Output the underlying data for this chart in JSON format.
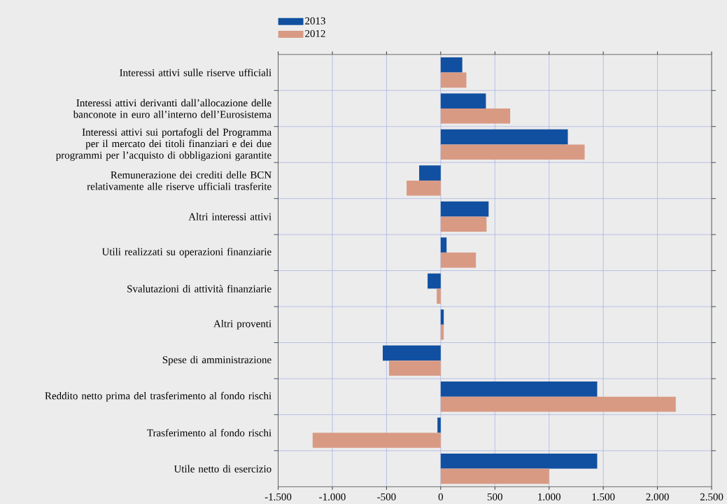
{
  "chart_data": {
    "type": "bar",
    "orientation": "horizontal",
    "categories": [
      "Interessi attivi sulle riserve ufficiali",
      "Interessi attivi derivanti dall’allocazione delle banconote in euro all’interno dell’Eurosistema",
      "Interessi attivi sui portafogli del Programma per il mercato dei titoli finanziari e dei due programmi per l’acquisto di obbligazioni garantite",
      "Remunerazione dei crediti delle BCN relativamente alle riserve ufficiali trasferite",
      "Altri interessi attivi",
      "Utili realizzati su operazioni finanziarie",
      "Svalutazioni di attività finanziarie",
      "Altri proventi",
      "Spese di amministrazione",
      "Reddito netto prima del trasferimento al fondo rischi",
      "Trasferimento al fondo rischi",
      "Utile netto di esercizio"
    ],
    "series": [
      {
        "name": "2013",
        "color": "#1150a0",
        "values": [
          199,
          417,
          1173,
          -199,
          442,
          54,
          -121,
          28,
          -535,
          1444,
          -30,
          1444
        ]
      },
      {
        "name": "2012",
        "color": "#d99a84",
        "values": [
          237,
          641,
          1328,
          -315,
          423,
          325,
          -37,
          28,
          -477,
          2169,
          -1182,
          1000
        ]
      }
    ],
    "xlim": [
      -1500,
      2500
    ],
    "xticks": [
      {
        "value": -1500,
        "label": "-1.500"
      },
      {
        "value": -1000,
        "label": "-1.000"
      },
      -500,
      0,
      500,
      {
        "value": 1000,
        "label": "1.000"
      },
      {
        "value": 1500,
        "label": "1.500"
      },
      {
        "value": 2000,
        "label": "2.000"
      },
      {
        "value": 2500,
        "label": "2.500"
      }
    ],
    "grid": true,
    "legend": "top left"
  }
}
